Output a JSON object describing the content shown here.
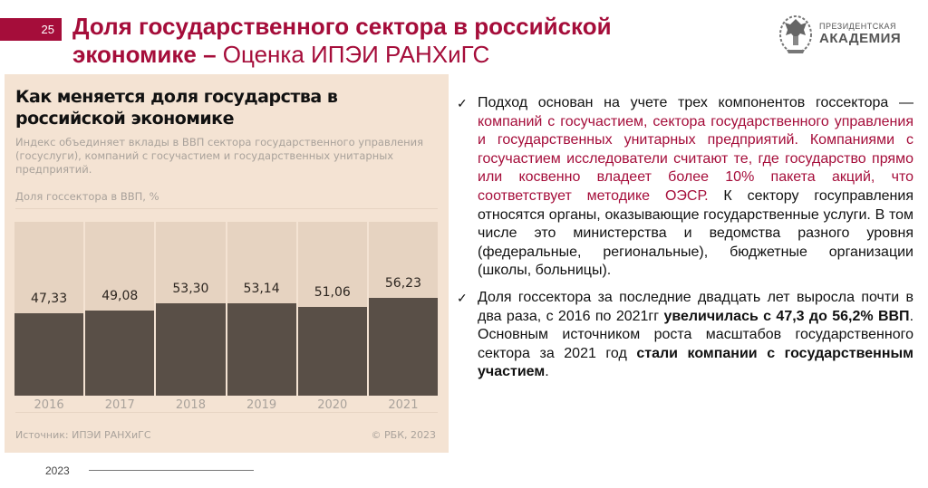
{
  "header": {
    "slide_number": "25",
    "title_bold_line1": "Доля государственного сектора в российской",
    "title_bold_line2": "экономике –",
    "title_regular_line2": " Оценка ИПЭИ РАНХиГС"
  },
  "logo": {
    "line1": "ПРЕЗИДЕНТСКАЯ",
    "line2": "АКАДЕМИЯ",
    "emblem_icon": "double-headed-eagle-emblem-icon"
  },
  "chart_panel": {
    "title": "Как меняется доля государства в российской экономике",
    "subtitle": "Индекс объединяет вклады в ВВП сектора государственного управления (госуслуги), компаний с госучастием и государственных унитарных предприятий.",
    "ylabel": "Доля госсектора в ВВП, %",
    "source": "Источник: ИПЭИ РАНХиГС",
    "copyright": "© РБК, 2023",
    "bars": [
      {
        "year": "2016",
        "label": "47,33",
        "pct": 47.33
      },
      {
        "year": "2017",
        "label": "49,08",
        "pct": 49.08
      },
      {
        "year": "2018",
        "label": "53,30",
        "pct": 53.3
      },
      {
        "year": "2019",
        "label": "53,14",
        "pct": 53.14
      },
      {
        "year": "2020",
        "label": "51,06",
        "pct": 51.06
      },
      {
        "year": "2021",
        "label": "56,23",
        "pct": 56.23
      }
    ]
  },
  "chart_data": {
    "type": "bar",
    "title": "Как меняется доля государства в российской экономике",
    "subtitle": "Индекс объединяет вклады в ВВП сектора государственного управления (госуслуги), компаний с госучастием и государственных унитарных предприятий.",
    "xlabel": "",
    "ylabel": "Доля госсектора в ВВП, %",
    "categories": [
      "2016",
      "2017",
      "2018",
      "2019",
      "2020",
      "2021"
    ],
    "values": [
      47.33,
      49.08,
      53.3,
      53.14,
      51.06,
      56.23
    ],
    "ylim": [
      0,
      100
    ],
    "grid": false,
    "legend": null,
    "source": "Источник: ИПЭИ РАНХиГС",
    "credit": "© РБК, 2023",
    "colors": {
      "bar": "#594f47",
      "track": "#e6d3c1",
      "background": "#f4e3d3"
    }
  },
  "bullets": {
    "b1": {
      "p1": "Подход основан на учете трех компонентов госсектора — ",
      "p2_accent": "компаний с госучастием, сектора государственного управления и государственных унитарных предприятий. Компаниями с госучастием исследователи считают те, где государство прямо или косвенно владеет более 10% пакета акций, что соответствует методике ОЭСР.",
      "p3": " К сектору госуправления относятся органы, оказывающие государственные услуги. В том числе это министерства и ведомства разного уровня (федеральные, региональные), бюджетные организации (школы, больницы)."
    },
    "b2": {
      "p1": "Доля госсектора за последние двадцать лет выросла почти в два раза, с 2016 по 2021гг ",
      "p2_bold": "увеличилась с 47,3 до 56,2% ВВП",
      "p3": ". Основным источником роста масштабов государственного сектора за 2021 год ",
      "p4_bold": "стали компании с государственным участием",
      "p5": "."
    },
    "check_glyph": "✓"
  },
  "footer": {
    "year": "2023"
  },
  "colors": {
    "accent": "#a50d3a",
    "panel_bg": "#f4e3d3",
    "bar_dark": "#594f47"
  }
}
